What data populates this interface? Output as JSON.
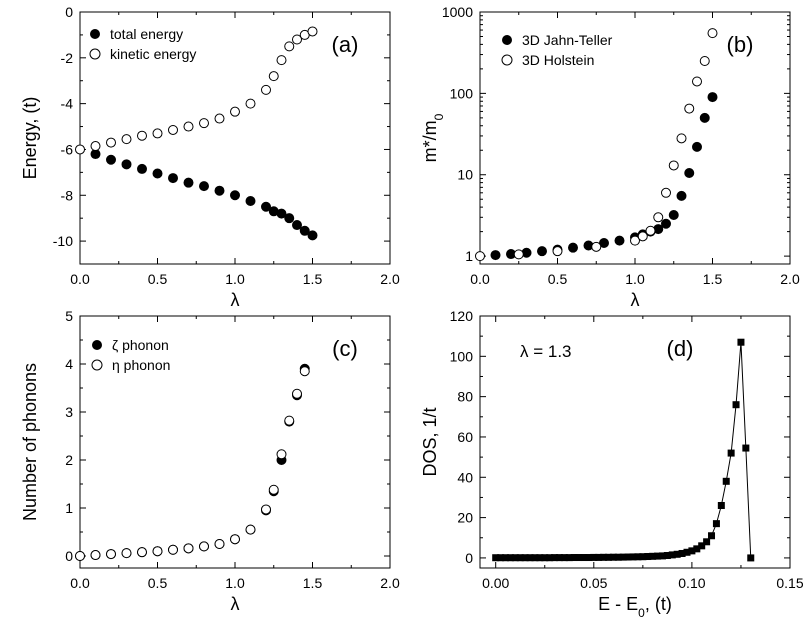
{
  "chart_data": [
    {
      "type": "scatter",
      "panel_label": "(a)",
      "xlabel": "λ",
      "ylabel": "Energy, (t)",
      "xlim": [
        0,
        2
      ],
      "ylim": [
        -11,
        0
      ],
      "xticks": [
        "0.0",
        "0.5",
        "1.0",
        "1.5",
        "2.0"
      ],
      "yticks": [
        "0",
        "-2",
        "-4",
        "-6",
        "-8",
        "-10"
      ],
      "legend": "top-left",
      "series": [
        {
          "name": "total energy",
          "marker": "filled-circle",
          "x": [
            0.1,
            0.2,
            0.3,
            0.4,
            0.5,
            0.6,
            0.7,
            0.8,
            0.9,
            1.0,
            1.1,
            1.2,
            1.25,
            1.3,
            1.35,
            1.4,
            1.45,
            1.5
          ],
          "y": [
            -6.2,
            -6.45,
            -6.65,
            -6.85,
            -7.05,
            -7.25,
            -7.45,
            -7.6,
            -7.8,
            -8.0,
            -8.25,
            -8.5,
            -8.7,
            -8.8,
            -9.0,
            -9.3,
            -9.55,
            -9.75
          ]
        },
        {
          "name": "kinetic energy",
          "marker": "open-circle",
          "x": [
            0.0,
            0.1,
            0.2,
            0.3,
            0.4,
            0.5,
            0.6,
            0.7,
            0.8,
            0.9,
            1.0,
            1.1,
            1.2,
            1.25,
            1.3,
            1.35,
            1.4,
            1.45,
            1.5
          ],
          "y": [
            -6.0,
            -5.85,
            -5.7,
            -5.55,
            -5.4,
            -5.3,
            -5.15,
            -5.0,
            -4.85,
            -4.65,
            -4.35,
            -4.0,
            -3.4,
            -2.8,
            -2.1,
            -1.5,
            -1.2,
            -1.0,
            -0.85
          ]
        }
      ]
    },
    {
      "type": "scatter",
      "panel_label": "(b)",
      "xlabel": "λ",
      "ylabel": "m*/m",
      "ylabel_sub": "0",
      "yscale": "log",
      "xlim": [
        0,
        2
      ],
      "ylim": [
        0.8,
        1000
      ],
      "xticks": [
        "0.0",
        "0.5",
        "1.0",
        "1.5",
        "2.0"
      ],
      "yticks": [
        "1",
        "10",
        "100",
        "1000"
      ],
      "legend": "top-left",
      "series": [
        {
          "name": "3D Jahn-Teller",
          "marker": "filled-circle",
          "x": [
            0.1,
            0.2,
            0.3,
            0.4,
            0.5,
            0.6,
            0.7,
            0.8,
            0.9,
            1.0,
            1.05,
            1.1,
            1.15,
            1.2,
            1.25,
            1.3,
            1.35,
            1.4,
            1.45,
            1.5
          ],
          "y": [
            1.03,
            1.06,
            1.1,
            1.15,
            1.2,
            1.27,
            1.35,
            1.45,
            1.55,
            1.7,
            1.85,
            2.0,
            2.15,
            2.5,
            3.2,
            5.5,
            10.5,
            22,
            50,
            90
          ]
        },
        {
          "name": "3D Holstein",
          "marker": "open-circle",
          "x": [
            0.0,
            0.25,
            0.5,
            0.75,
            1.0,
            1.05,
            1.1,
            1.15,
            1.2,
            1.25,
            1.3,
            1.35,
            1.4,
            1.45,
            1.5
          ],
          "y": [
            1.0,
            1.05,
            1.15,
            1.3,
            1.55,
            1.75,
            2.05,
            3.0,
            6.0,
            13,
            28,
            65,
            140,
            250,
            550
          ]
        }
      ]
    },
    {
      "type": "scatter",
      "panel_label": "(c)",
      "xlabel": "λ",
      "ylabel": "Number of phonons",
      "xlim": [
        0,
        2
      ],
      "ylim": [
        -0.25,
        5
      ],
      "xticks": [
        "0.0",
        "0.5",
        "1.0",
        "1.5",
        "2.0"
      ],
      "yticks": [
        "0",
        "1",
        "2",
        "3",
        "4",
        "5"
      ],
      "legend": "top-left",
      "series": [
        {
          "name": "ζ phonon",
          "marker": "filled-circle",
          "x": [
            0.0,
            0.1,
            0.2,
            0.3,
            0.4,
            0.5,
            0.6,
            0.7,
            0.8,
            0.9,
            1.0,
            1.1,
            1.2,
            1.25,
            1.3,
            1.35,
            1.4,
            1.45
          ],
          "y": [
            0.0,
            0.02,
            0.04,
            0.06,
            0.08,
            0.1,
            0.13,
            0.16,
            0.2,
            0.25,
            0.35,
            0.55,
            0.95,
            1.35,
            2.0,
            2.8,
            3.35,
            3.9
          ]
        },
        {
          "name": "η phonon",
          "marker": "open-circle",
          "x": [
            0.0,
            0.1,
            0.2,
            0.3,
            0.4,
            0.5,
            0.6,
            0.7,
            0.8,
            0.9,
            1.0,
            1.1,
            1.2,
            1.25,
            1.3,
            1.35,
            1.4,
            1.45
          ],
          "y": [
            0.0,
            0.02,
            0.04,
            0.06,
            0.08,
            0.1,
            0.13,
            0.16,
            0.2,
            0.25,
            0.35,
            0.55,
            0.97,
            1.38,
            2.12,
            2.82,
            3.38,
            3.85
          ]
        }
      ]
    },
    {
      "type": "line",
      "panel_label": "(d)",
      "annotation": "λ = 1.3",
      "xlabel": "E - E",
      "xlabel_sub": "0",
      "xlabel_suffix": ", (t)",
      "ylabel": "DOS, 1/t",
      "xlim": [
        -0.008,
        0.15
      ],
      "ylim": [
        -5,
        120
      ],
      "xticks": [
        "0.00",
        "0.05",
        "0.10",
        "0.15"
      ],
      "yticks": [
        "0",
        "20",
        "40",
        "60",
        "80",
        "100",
        "120"
      ],
      "series": [
        {
          "marker": "filled-square",
          "x": [
            0.0,
            0.0025,
            0.005,
            0.0075,
            0.01,
            0.0125,
            0.015,
            0.0175,
            0.02,
            0.0225,
            0.025,
            0.0275,
            0.03,
            0.0325,
            0.035,
            0.0375,
            0.04,
            0.0425,
            0.045,
            0.0475,
            0.05,
            0.0525,
            0.055,
            0.0575,
            0.06,
            0.0625,
            0.065,
            0.0675,
            0.07,
            0.0725,
            0.075,
            0.0775,
            0.08,
            0.0825,
            0.085,
            0.0875,
            0.09,
            0.0925,
            0.095,
            0.0975,
            0.1,
            0.1025,
            0.105,
            0.1075,
            0.11,
            0.1125,
            0.115,
            0.1175,
            0.12,
            0.1225,
            0.125,
            0.1275,
            0.13
          ],
          "y": [
            0.1,
            0.1,
            0.1,
            0.1,
            0.1,
            0.1,
            0.1,
            0.1,
            0.1,
            0.1,
            0.1,
            0.1,
            0.15,
            0.15,
            0.15,
            0.15,
            0.2,
            0.2,
            0.2,
            0.2,
            0.25,
            0.25,
            0.3,
            0.3,
            0.35,
            0.35,
            0.4,
            0.45,
            0.5,
            0.55,
            0.6,
            0.7,
            0.8,
            0.9,
            1.0,
            1.2,
            1.5,
            1.8,
            2.2,
            2.8,
            3.5,
            4.5,
            6.0,
            8.0,
            11.0,
            17.0,
            26.0,
            38.0,
            52.0,
            76.0,
            107.0,
            54.5,
            0.0
          ]
        }
      ]
    }
  ]
}
